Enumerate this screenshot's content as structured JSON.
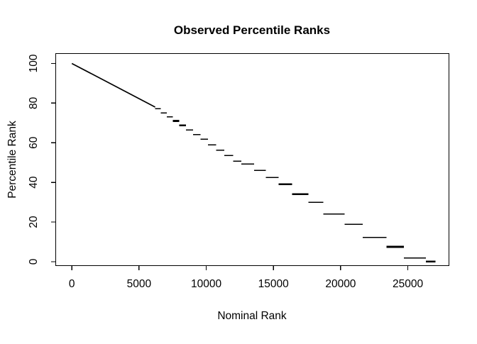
{
  "figure": {
    "background": "#ffffff",
    "text_color": "#000000",
    "axis_color": "#000000"
  },
  "chart_data": {
    "type": "scatter",
    "subtype": "tied-rank-step-plot",
    "title": "Observed Percentile Ranks",
    "xlabel": "Nominal Rank",
    "ylabel": "Percentile Rank",
    "x_ticks": [
      0,
      5000,
      10000,
      15000,
      20000,
      25000
    ],
    "y_ticks": [
      0,
      20,
      40,
      60,
      80,
      100
    ],
    "xlim": [
      -1200,
      28060
    ],
    "ylim": [
      -2,
      105
    ],
    "grid": false,
    "legend": null,
    "line_color": "#000000",
    "ramp": {
      "comment": "dense upper region, visually continuous diagonal of tiny steps",
      "rank": [
        0,
        6200
      ],
      "pr": [
        100,
        78
      ]
    },
    "segments": [
      [
        6200,
        6620,
        77.1,
        0
      ],
      [
        6620,
        7060,
        75.1,
        0
      ],
      [
        7060,
        7520,
        73.1,
        0
      ],
      [
        7520,
        8000,
        71.0,
        1
      ],
      [
        8000,
        8500,
        68.8,
        1
      ],
      [
        8500,
        9020,
        66.5,
        0
      ],
      [
        9020,
        9565,
        64.2,
        0
      ],
      [
        9565,
        10135,
        61.7,
        0
      ],
      [
        10135,
        10730,
        59.0,
        0
      ],
      [
        10730,
        11350,
        56.3,
        0
      ],
      [
        11350,
        12000,
        53.5,
        0
      ],
      [
        12000,
        12600,
        50.7,
        0
      ],
      [
        12600,
        13550,
        49.3,
        0
      ],
      [
        13550,
        14430,
        46.0,
        0
      ],
      [
        14430,
        15380,
        42.4,
        0
      ],
      [
        15380,
        16400,
        39.1,
        1
      ],
      [
        16400,
        17600,
        34.1,
        1
      ],
      [
        17600,
        18700,
        29.9,
        0
      ],
      [
        18700,
        20300,
        24.0,
        0
      ],
      [
        20300,
        21650,
        18.9,
        0
      ],
      [
        21650,
        23400,
        12.2,
        0
      ],
      [
        23400,
        24700,
        7.5,
        1
      ],
      [
        24700,
        26350,
        1.8,
        0
      ],
      [
        26350,
        27050,
        0.0,
        1
      ]
    ]
  }
}
